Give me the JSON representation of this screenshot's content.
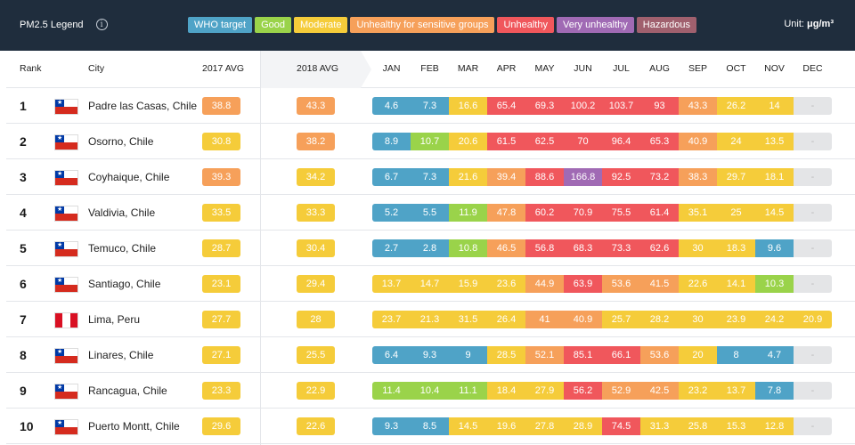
{
  "legend": {
    "title": "PM2.5 Legend",
    "info_icon": "i",
    "items": [
      {
        "label": "WHO target",
        "color": "#4fa3c7"
      },
      {
        "label": "Good",
        "color": "#9ad34a"
      },
      {
        "label": "Moderate",
        "color": "#f5cc3a"
      },
      {
        "label": "Unhealthy for sensitive groups",
        "color": "#f6a05a"
      },
      {
        "label": "Unhealthy",
        "color": "#f0575c"
      },
      {
        "label": "Very unhealthy",
        "color": "#a06ab4"
      },
      {
        "label": "Hazardous",
        "color": "#a0606e"
      }
    ],
    "unit_prefix": "Unit: ",
    "unit_value": "μg/m³"
  },
  "header": {
    "rank": "Rank",
    "city": "City",
    "avg2017": "2017 AVG",
    "avg2018": "2018 AVG",
    "months": [
      "JAN",
      "FEB",
      "MAR",
      "APR",
      "MAY",
      "JUN",
      "JUL",
      "AUG",
      "SEP",
      "OCT",
      "NOV",
      "DEC"
    ]
  },
  "rows": [
    {
      "rank": "1",
      "city": "Padre las Casas, Chile",
      "flag": "chile",
      "avg2017": "38.8",
      "avg2018": "43.3",
      "months": [
        "4.6",
        "7.3",
        "16.6",
        "65.4",
        "69.3",
        "100.2",
        "103.7",
        "93",
        "43.3",
        "26.2",
        "14",
        "-"
      ]
    },
    {
      "rank": "2",
      "city": "Osorno, Chile",
      "flag": "chile",
      "avg2017": "30.8",
      "avg2018": "38.2",
      "months": [
        "8.9",
        "10.7",
        "20.6",
        "61.5",
        "62.5",
        "70",
        "96.4",
        "65.3",
        "40.9",
        "24",
        "13.5",
        "-"
      ]
    },
    {
      "rank": "3",
      "city": "Coyhaique, Chile",
      "flag": "chile",
      "avg2017": "39.3",
      "avg2018": "34.2",
      "months": [
        "6.7",
        "7.3",
        "21.6",
        "39.4",
        "88.6",
        "166.8",
        "92.5",
        "73.2",
        "38.3",
        "29.7",
        "18.1",
        "-"
      ]
    },
    {
      "rank": "4",
      "city": "Valdivia, Chile",
      "flag": "chile",
      "avg2017": "33.5",
      "avg2018": "33.3",
      "months": [
        "5.2",
        "5.5",
        "11.9",
        "47.8",
        "60.2",
        "70.9",
        "75.5",
        "61.4",
        "35.1",
        "25",
        "14.5",
        "-"
      ]
    },
    {
      "rank": "5",
      "city": "Temuco, Chile",
      "flag": "chile",
      "avg2017": "28.7",
      "avg2018": "30.4",
      "months": [
        "2.7",
        "2.8",
        "10.8",
        "46.5",
        "56.8",
        "68.3",
        "73.3",
        "62.6",
        "30",
        "18.3",
        "9.6",
        "-"
      ]
    },
    {
      "rank": "6",
      "city": "Santiago, Chile",
      "flag": "chile",
      "avg2017": "23.1",
      "avg2018": "29.4",
      "months": [
        "13.7",
        "14.7",
        "15.9",
        "23.6",
        "44.9",
        "63.9",
        "53.6",
        "41.5",
        "22.6",
        "14.1",
        "10.3",
        "-"
      ]
    },
    {
      "rank": "7",
      "city": "Lima, Peru",
      "flag": "peru",
      "avg2017": "27.7",
      "avg2018": "28",
      "months": [
        "23.7",
        "21.3",
        "31.5",
        "26.4",
        "41",
        "40.9",
        "25.7",
        "28.2",
        "30",
        "23.9",
        "24.2",
        "20.9"
      ]
    },
    {
      "rank": "8",
      "city": "Linares, Chile",
      "flag": "chile",
      "avg2017": "27.1",
      "avg2018": "25.5",
      "months": [
        "6.4",
        "9.3",
        "9",
        "28.5",
        "52.1",
        "85.1",
        "66.1",
        "53.6",
        "20",
        "8",
        "4.7",
        "-"
      ]
    },
    {
      "rank": "9",
      "city": "Rancagua, Chile",
      "flag": "chile",
      "avg2017": "23.3",
      "avg2018": "22.9",
      "months": [
        "11.4",
        "10.4",
        "11.1",
        "18.4",
        "27.9",
        "56.2",
        "52.9",
        "42.5",
        "23.2",
        "13.7",
        "7.8",
        "-"
      ]
    },
    {
      "rank": "10",
      "city": "Puerto Montt, Chile",
      "flag": "chile",
      "avg2017": "29.6",
      "avg2018": "22.6",
      "months": [
        "9.3",
        "8.5",
        "14.5",
        "19.6",
        "27.8",
        "28.9",
        "74.5",
        "31.3",
        "25.8",
        "15.3",
        "12.8",
        "-"
      ]
    }
  ]
}
